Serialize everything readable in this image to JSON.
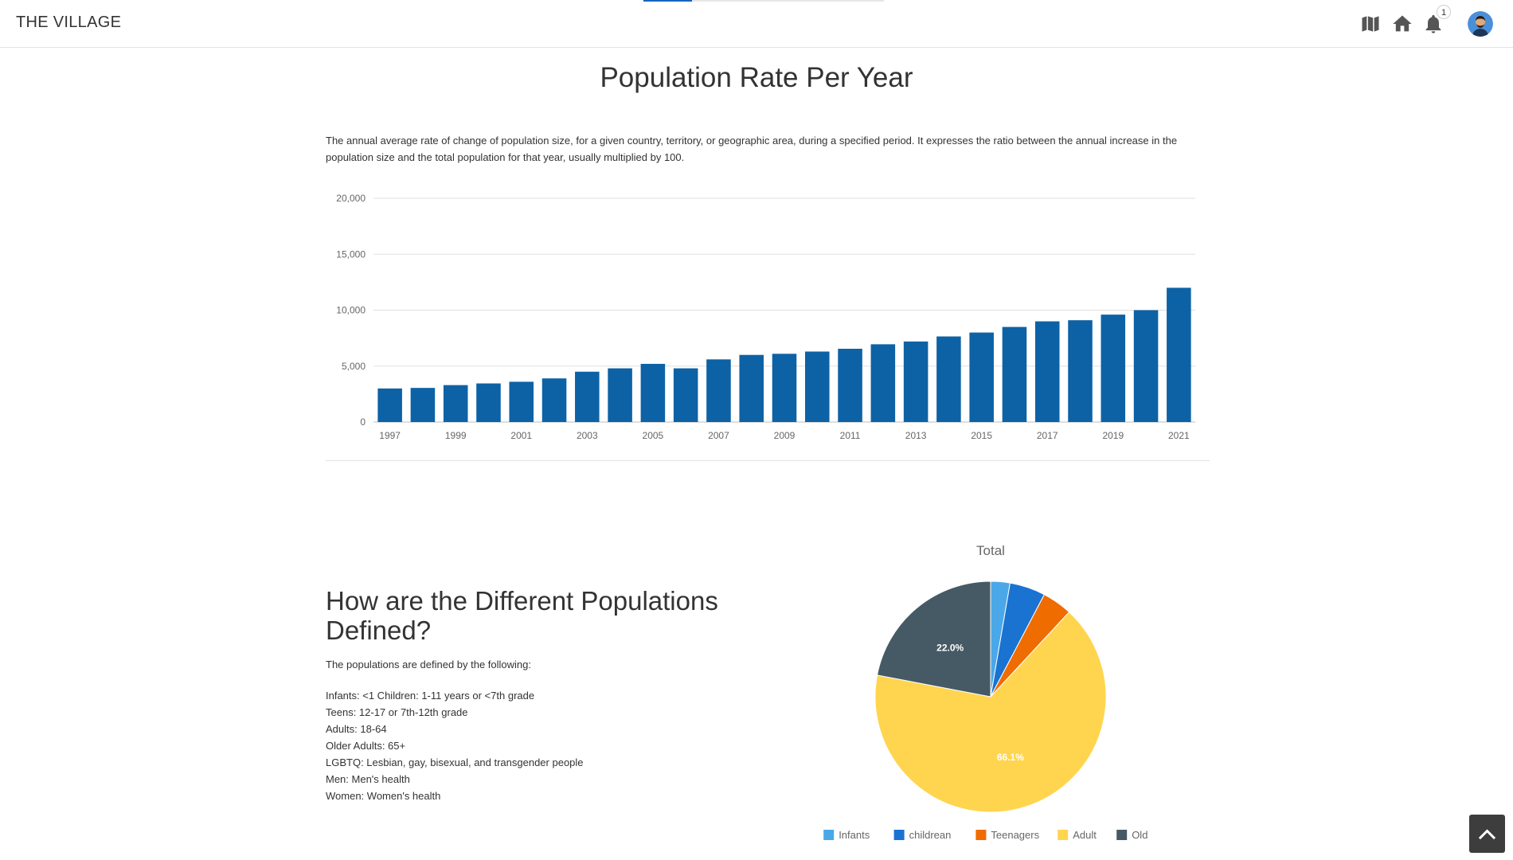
{
  "app": {
    "title": "THE VILLAGE"
  },
  "topbar": {
    "icons": [
      {
        "name": "map-icon"
      },
      {
        "name": "home-icon"
      },
      {
        "name": "bell-icon",
        "badge": "1"
      },
      {
        "name": "avatar"
      }
    ]
  },
  "section1": {
    "title": "Population Rate Per Year",
    "description": "The annual average rate of change of population size, for a given country, territory, or geographic area, during a specified period. It expresses the ratio between the annual increase in the population size and the total population for that year, usually multiplied by 100."
  },
  "section2": {
    "title": "How are the Different Populations Defined?",
    "intro": "The populations are defined by the following:",
    "definitions": [
      "Infants: <1 Children: 1-11 years or <7th grade",
      "Teens: 12-17 or 7th-12th grade",
      "Adults: 18-64",
      "Older Adults: 65+",
      "LGBTQ: Lesbian, gay, bisexual, and transgender people",
      "Men: Men's health",
      "Women: Women's health"
    ]
  },
  "chart_data": [
    {
      "type": "bar",
      "title": "",
      "xlabel": "",
      "ylabel": "",
      "ylim": [
        0,
        20000
      ],
      "yticks": [
        "0",
        "5,000",
        "10,000",
        "15,000",
        "20,000"
      ],
      "ytick_values": [
        0,
        5000,
        10000,
        15000,
        20000
      ],
      "categories": [
        "1997",
        "1998",
        "1999",
        "2000",
        "2001",
        "2002",
        "2003",
        "2004",
        "2005",
        "2006",
        "2007",
        "2008",
        "2009",
        "2010",
        "2011",
        "2012",
        "2013",
        "2014",
        "2015",
        "2016",
        "2017",
        "2018",
        "2019",
        "2020",
        "2021"
      ],
      "category_labels_shown": [
        "1997",
        "1999",
        "2001",
        "2003",
        "2005",
        "2007",
        "2009",
        "2011",
        "2013",
        "2015",
        "2017",
        "2019",
        "2021"
      ],
      "values": [
        3000,
        3050,
        3300,
        3450,
        3600,
        3900,
        4500,
        4800,
        5200,
        4800,
        5600,
        6000,
        6100,
        6300,
        6550,
        6950,
        7200,
        7650,
        8000,
        8500,
        9000,
        9100,
        9600,
        10000,
        12000
      ],
      "color": "#0d62a6",
      "grid": true,
      "legend": "none"
    },
    {
      "type": "pie",
      "title": "Total",
      "series": [
        {
          "name": "Infants",
          "value": 2.7,
          "color": "#4aa8e8"
        },
        {
          "name": "childrean",
          "value": 5.0,
          "color": "#1a73d1"
        },
        {
          "name": "Teenagers",
          "value": 4.2,
          "color": "#ef6c00"
        },
        {
          "name": "Adult",
          "value": 66.1,
          "color": "#ffd54f"
        },
        {
          "name": "Old",
          "value": 22.0,
          "color": "#455a64"
        }
      ],
      "data_labels": [
        "",
        "",
        "",
        "66.1%",
        "22.0%"
      ],
      "legend": "bottom"
    }
  ]
}
